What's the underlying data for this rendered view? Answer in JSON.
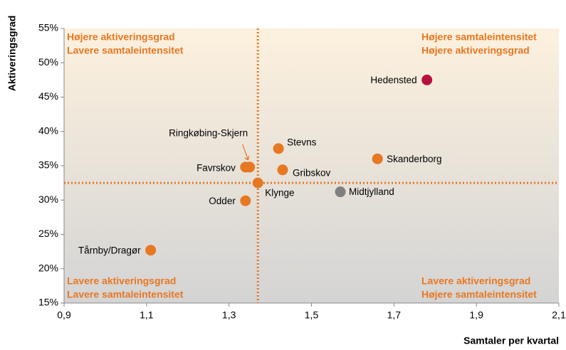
{
  "chart_data": {
    "type": "scatter",
    "xlabel": "Samtaler per kvartal",
    "ylabel": "Aktiveringsgrad",
    "xlim": [
      0.9,
      2.1
    ],
    "ylim": [
      15,
      55
    ],
    "xticks": [
      {
        "value": 0.9,
        "label": "0,9"
      },
      {
        "value": 1.1,
        "label": "1,1"
      },
      {
        "value": 1.3,
        "label": "1,3"
      },
      {
        "value": 1.5,
        "label": "1,5"
      },
      {
        "value": 1.7,
        "label": "1,7"
      },
      {
        "value": 1.9,
        "label": "1,9"
      },
      {
        "value": 2.1,
        "label": "2,1"
      }
    ],
    "yticks": [
      {
        "value": 15,
        "label": "15%"
      },
      {
        "value": 20,
        "label": "20%"
      },
      {
        "value": 25,
        "label": "25%"
      },
      {
        "value": 30,
        "label": "30%"
      },
      {
        "value": 35,
        "label": "35%"
      },
      {
        "value": 40,
        "label": "40%"
      },
      {
        "value": 45,
        "label": "45%"
      },
      {
        "value": 50,
        "label": "50%"
      },
      {
        "value": 55,
        "label": "55%"
      }
    ],
    "grid": false,
    "xref": 1.37,
    "yref": 32.5,
    "ref_color": "#e87722",
    "quadrants": [
      [
        "Højere aktiveringsgrad",
        "Lavere samtaleintensitet"
      ],
      [
        "Højere samtaleintensitet",
        "Højere aktiveringsgrad"
      ],
      [
        "Lavere aktiveringsgrad",
        "Lavere samtaleintensitet"
      ],
      [
        "Lavere aktiveringsgrad",
        "Højere samtaleintensitet"
      ]
    ],
    "points": [
      {
        "label": "Hedensted",
        "x": 1.78,
        "y": 47.5,
        "color": "#b5123e"
      },
      {
        "label": "Stevns",
        "x": 1.42,
        "y": 37.5,
        "color": "#e87722"
      },
      {
        "label": "Skanderborg",
        "x": 1.66,
        "y": 36.0,
        "color": "#e87722"
      },
      {
        "label": "Ringkøbing-Skjern",
        "x": 1.35,
        "y": 34.8,
        "color": "#e87722"
      },
      {
        "label": "Favrskov",
        "x": 1.34,
        "y": 34.8,
        "color": "#e87722"
      },
      {
        "label": "Gribskov",
        "x": 1.43,
        "y": 34.4,
        "color": "#e87722"
      },
      {
        "label": "Klynge",
        "x": 1.37,
        "y": 32.5,
        "color": "#e87722"
      },
      {
        "label": "Midtjylland",
        "x": 1.57,
        "y": 31.2,
        "color": "#7f7f7f"
      },
      {
        "label": "Odder",
        "x": 1.34,
        "y": 29.9,
        "color": "#e87722"
      },
      {
        "label": "Tårnby/Dragør",
        "x": 1.11,
        "y": 22.7,
        "color": "#e87722"
      }
    ]
  }
}
